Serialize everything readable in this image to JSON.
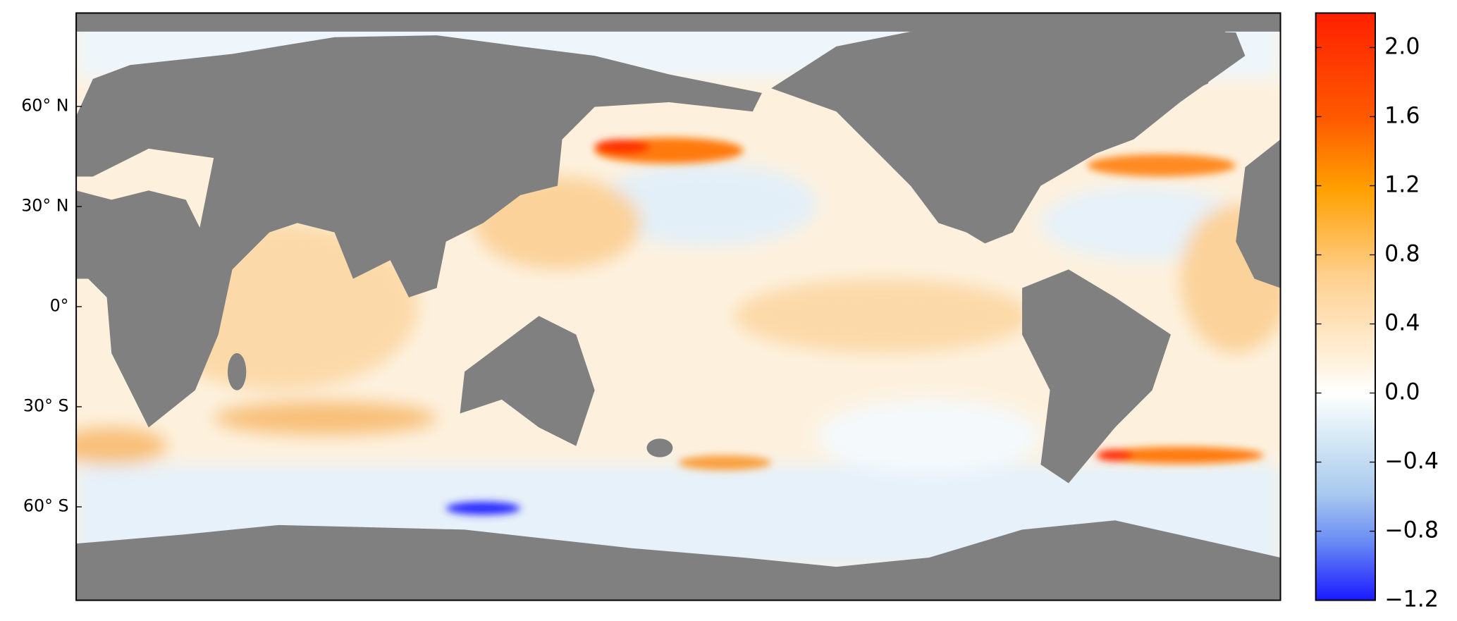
{
  "chart_data": {
    "type": "map",
    "ylim": [
      -88,
      88
    ],
    "yticks": [
      {
        "value": 60,
        "label": "60° N"
      },
      {
        "value": 30,
        "label": "30° N"
      },
      {
        "value": 0,
        "label": "0°"
      },
      {
        "value": -30,
        "label": "30° S"
      },
      {
        "value": -60,
        "label": "60° S"
      }
    ],
    "colorbar": {
      "lim": [
        -1.2,
        2.2
      ],
      "ticks": [
        {
          "value": -1.2,
          "label": "−1.2"
        },
        {
          "value": -0.8,
          "label": "−0.8"
        },
        {
          "value": -0.4,
          "label": "−0.4"
        },
        {
          "value": 0,
          "label": "0.0"
        },
        0.4,
        0.8,
        1.2,
        1.6,
        {
          "value": 2,
          "label": "2.0"
        }
      ]
    }
  }
}
